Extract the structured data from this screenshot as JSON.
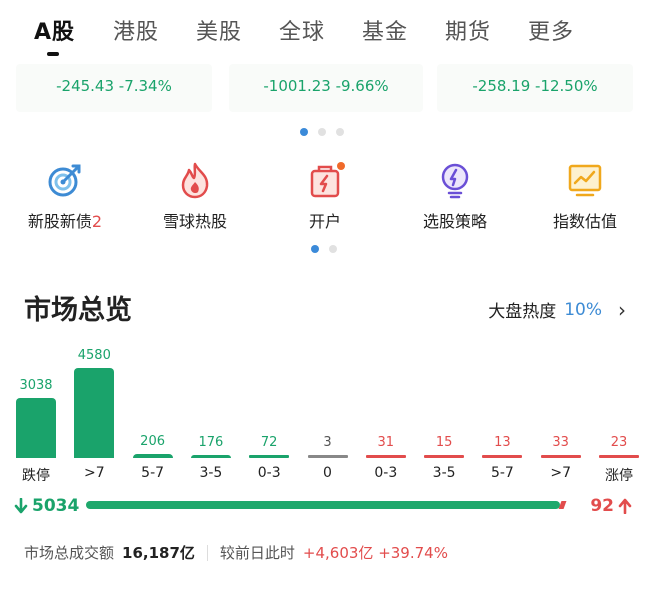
{
  "tabs": [
    {
      "label": "A股",
      "active": true
    },
    {
      "label": "港股",
      "active": false
    },
    {
      "label": "美股",
      "active": false
    },
    {
      "label": "全球",
      "active": false
    },
    {
      "label": "基金",
      "active": false
    },
    {
      "label": "期货",
      "active": false
    },
    {
      "label": "更多",
      "active": false
    }
  ],
  "index_cards": [
    {
      "change": "-245.43 -7.34%"
    },
    {
      "change": "-1001.23 -9.66%"
    },
    {
      "change": "-258.19 -12.50%"
    }
  ],
  "shortcuts": [
    {
      "label": "新股新债",
      "badge": "2",
      "icon": "target-icon"
    },
    {
      "label": "雪球热股",
      "badge": "",
      "icon": "fire-icon"
    },
    {
      "label": "开户",
      "badge": "",
      "icon": "gift-bag-icon"
    },
    {
      "label": "选股策略",
      "badge": "",
      "icon": "lightbulb-icon"
    },
    {
      "label": "指数估值",
      "badge": "",
      "icon": "chart-board-icon"
    }
  ],
  "market": {
    "title": "市场总览",
    "heat_label": "大盘热度",
    "heat_value": "10%",
    "distribution": [
      {
        "value": "3038",
        "category": "跌停",
        "color": "#1aa36b"
      },
      {
        "value": "4580",
        "category": ">7",
        "color": "#1aa36b"
      },
      {
        "value": "206",
        "category": "5-7",
        "color": "#1aa36b"
      },
      {
        "value": "176",
        "category": "3-5",
        "color": "#1aa36b"
      },
      {
        "value": "72",
        "category": "0-3",
        "color": "#1aa36b"
      },
      {
        "value": "3",
        "category": "0",
        "color": "#888888"
      },
      {
        "value": "31",
        "category": "0-3",
        "color": "#e24c4c"
      },
      {
        "value": "15",
        "category": "3-5",
        "color": "#e24c4c"
      },
      {
        "value": "13",
        "category": "5-7",
        "color": "#e24c4c"
      },
      {
        "value": "33",
        "category": ">7",
        "color": "#e24c4c"
      },
      {
        "value": "23",
        "category": "涨停",
        "color": "#e24c4c"
      }
    ],
    "down_count": "5034",
    "up_count": "92",
    "turnover_label": "市场总成交额",
    "turnover_value": "16,187亿",
    "compare_label": "较前日此时",
    "compare_change": "+4,603亿 +39.74%"
  },
  "colors": {
    "up": "#e24c4c",
    "down": "#1aa36b",
    "accent": "#3b8ad9"
  }
}
